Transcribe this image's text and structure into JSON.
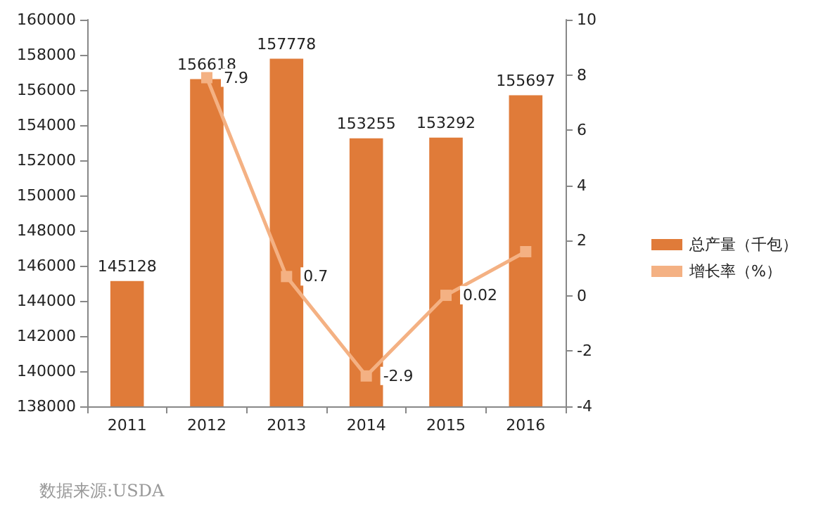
{
  "chart_data": {
    "type": "bar",
    "categories": [
      "2011",
      "2012",
      "2013",
      "2014",
      "2015",
      "2016"
    ],
    "series": [
      {
        "name": "总产量（千包）",
        "color": "#e07b39",
        "values": [
          145128,
          156618,
          157778,
          153255,
          153292,
          155697
        ],
        "data_labels": true
      },
      {
        "name": "增长率（%）",
        "type": "line",
        "axis": "y2",
        "color": "#f4b183",
        "marker": "square",
        "values": [
          null,
          7.9,
          0.7,
          -2.9,
          0.02,
          1.6
        ],
        "value_labels": [
          null,
          "7.9",
          "0.7",
          "-2.9",
          "0.02",
          null
        ]
      }
    ],
    "ylim": [
      138000,
      160000
    ],
    "yticks": [
      138000,
      140000,
      142000,
      144000,
      146000,
      148000,
      150000,
      152000,
      154000,
      156000,
      158000,
      160000
    ],
    "y2lim": [
      -4,
      10
    ],
    "y2ticks": [
      -4,
      -2,
      0,
      2,
      4,
      6,
      8,
      10
    ],
    "grid": false,
    "legend": "right",
    "annotations": [
      "数据来源:USDA"
    ]
  }
}
